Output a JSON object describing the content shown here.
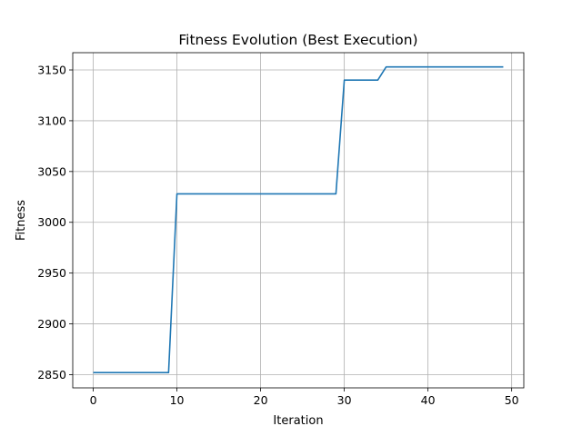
{
  "chart_data": {
    "type": "line",
    "title": "Fitness Evolution (Best Execution)",
    "xlabel": "Iteration",
    "ylabel": "Fitness",
    "xlim": [
      -2.45,
      51.45
    ],
    "ylim": [
      2837,
      3167
    ],
    "xticks": [
      0,
      10,
      20,
      30,
      40,
      50
    ],
    "yticks": [
      2850,
      2900,
      2950,
      3000,
      3050,
      3100,
      3150
    ],
    "grid": true,
    "series_color": "#1f77b4",
    "series": [
      {
        "x": [
          0,
          1,
          2,
          3,
          4,
          5,
          6,
          7,
          8,
          9,
          10,
          11,
          12,
          13,
          14,
          15,
          16,
          17,
          18,
          19,
          20,
          21,
          22,
          23,
          24,
          25,
          26,
          27,
          28,
          29,
          30,
          31,
          32,
          33,
          34,
          35,
          36,
          37,
          38,
          39,
          40,
          41,
          42,
          43,
          44,
          45,
          46,
          47,
          48,
          49
        ],
        "values": [
          2852,
          2852,
          2852,
          2852,
          2852,
          2852,
          2852,
          2852,
          2852,
          2852,
          3028,
          3028,
          3028,
          3028,
          3028,
          3028,
          3028,
          3028,
          3028,
          3028,
          3028,
          3028,
          3028,
          3028,
          3028,
          3028,
          3028,
          3028,
          3028,
          3028,
          3140,
          3140,
          3140,
          3140,
          3140,
          3153,
          3153,
          3153,
          3153,
          3153,
          3153,
          3153,
          3153,
          3153,
          3153,
          3153,
          3153,
          3153,
          3153,
          3153
        ]
      }
    ]
  }
}
